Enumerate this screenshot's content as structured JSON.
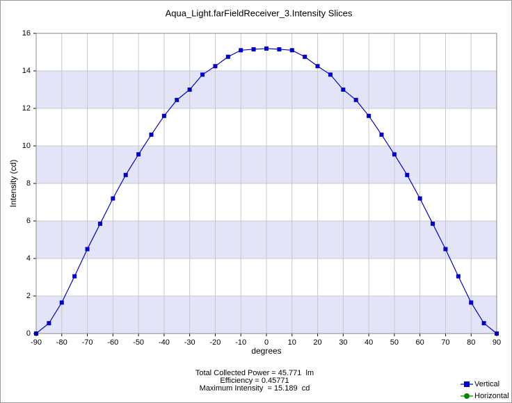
{
  "chart_data": {
    "type": "line",
    "title": "Aqua_Light.farFieldReceiver_3.Intensity Slices",
    "x_label": "degrees",
    "y_label": "Intensity (cd)",
    "x": [
      -90,
      -85,
      -80,
      -75,
      -70,
      -65,
      -60,
      -55,
      -50,
      -45,
      -40,
      -35,
      -30,
      -25,
      -20,
      -15,
      -10,
      -5,
      0,
      5,
      10,
      15,
      20,
      25,
      30,
      35,
      40,
      45,
      50,
      55,
      60,
      65,
      70,
      75,
      80,
      85,
      90
    ],
    "series": [
      {
        "name": "Vertical",
        "color": "#0000cc",
        "marker": "square",
        "values": [
          0,
          0.55,
          1.65,
          3.05,
          4.5,
          5.85,
          7.2,
          8.45,
          9.55,
          10.6,
          11.6,
          12.45,
          13.0,
          13.8,
          14.25,
          14.75,
          15.1,
          15.15,
          15.19,
          15.15,
          15.1,
          14.75,
          14.25,
          13.8,
          13.0,
          12.45,
          11.6,
          10.6,
          9.55,
          8.45,
          7.2,
          5.85,
          4.5,
          3.05,
          1.65,
          0.55,
          0
        ]
      },
      {
        "name": "Horizontal",
        "color": "#008800",
        "marker": "circle",
        "values": [
          null,
          null,
          null,
          null,
          null,
          null,
          null,
          null,
          null,
          null,
          null,
          null,
          null,
          null,
          null,
          null,
          null,
          null,
          null,
          null,
          null,
          null,
          null,
          null,
          null,
          null,
          null,
          null,
          null,
          null,
          null,
          null,
          null,
          null,
          null,
          null,
          null
        ]
      }
    ],
    "xlim": [
      -90,
      90
    ],
    "xticks": [
      -90,
      -80,
      -70,
      -60,
      -50,
      -40,
      -30,
      -20,
      -10,
      0,
      10,
      20,
      30,
      40,
      50,
      60,
      70,
      80,
      90
    ],
    "ylim": [
      0,
      16
    ],
    "yticks": [
      0,
      2,
      4,
      6,
      8,
      10,
      12,
      14,
      16
    ],
    "grid": true,
    "band_color": "#e4e4f8",
    "legend": "bottom-right",
    "annotations": [
      "Total Collected Power = 45.771  lm",
      "Efficiency = 0.45771",
      "Maximum Intensity  = 15.189  cd"
    ]
  }
}
